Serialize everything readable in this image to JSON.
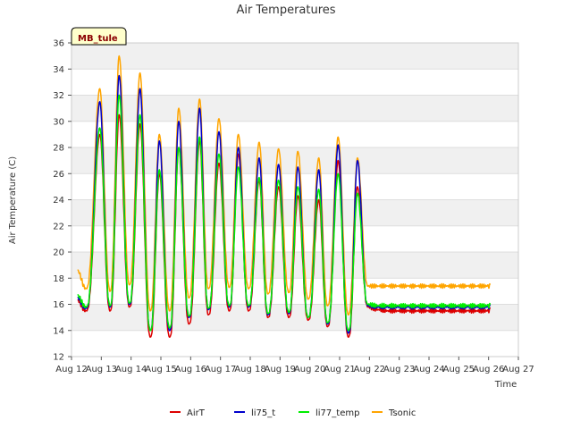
{
  "badge": "MB_tule",
  "colors": {
    "AirT": "#dd0000",
    "li75_t": "#0000cc",
    "li77_temp": "#00ee00",
    "Tsonic": "#ffa500",
    "band": "#f0f0f0",
    "grid": "#dddddd",
    "badge_fill": "#ffffcc"
  },
  "chart_data": {
    "type": "line",
    "title": "Air Temperatures",
    "xlabel": "Time",
    "ylabel": "Air Temperature (C)",
    "xlim": [
      12,
      27
    ],
    "ylim": [
      12,
      36
    ],
    "x_ticks": [
      12,
      13,
      14,
      15,
      16,
      17,
      18,
      19,
      20,
      21,
      22,
      23,
      24,
      25,
      26,
      27
    ],
    "x_tick_labels": [
      "Aug 12",
      "Aug 13",
      "Aug 14",
      "Aug 15",
      "Aug 16",
      "Aug 17",
      "Aug 18",
      "Aug 19",
      "Aug 20",
      "Aug 21",
      "Aug 22",
      "Aug 23",
      "Aug 24",
      "Aug 25",
      "Aug 26",
      "Aug 27"
    ],
    "y_ticks": [
      12,
      14,
      16,
      18,
      20,
      22,
      24,
      26,
      28,
      30,
      32,
      34,
      36
    ],
    "grid": true,
    "legend": "bottom",
    "daily_x": [
      12.2,
      12.5,
      12.95,
      13.3,
      13.6,
      13.95,
      14.3,
      14.65,
      14.95,
      15.3,
      15.6,
      15.95,
      16.3,
      16.6,
      16.95,
      17.3,
      17.6,
      17.95,
      18.3,
      18.6,
      18.95,
      19.3,
      19.6,
      19.95,
      20.3,
      20.6,
      20.95,
      21.3,
      21.6,
      21.95,
      22.3,
      22.6,
      22.95,
      23.3,
      23.6,
      23.95,
      24.3,
      24.6,
      24.95,
      25.3,
      25.6,
      25.95,
      26.1
    ],
    "series": [
      {
        "name": "AirT",
        "values": [
          16.3,
          15.5,
          29.0,
          15.5,
          30.5,
          15.8,
          29.8,
          13.5,
          26.0,
          13.5,
          28.0,
          14.5,
          28.5,
          15.2,
          26.8,
          15.5,
          27.5,
          15.5,
          25.5,
          15.0,
          25.0,
          15.0,
          24.3,
          14.8,
          24.0,
          14.3,
          27.0,
          13.5,
          25.0,
          15.8,
          15.6,
          15.5,
          15.5,
          15.5,
          15.5,
          15.5,
          15.5,
          15.5,
          15.5,
          15.5,
          15.5,
          15.5,
          15.6
        ]
      },
      {
        "name": "li75_t",
        "values": [
          16.5,
          15.7,
          31.5,
          15.8,
          33.5,
          16.0,
          32.5,
          14.0,
          28.5,
          14.0,
          30.0,
          15.0,
          31.0,
          15.6,
          29.2,
          15.8,
          28.0,
          15.8,
          27.2,
          15.2,
          26.7,
          15.3,
          26.5,
          15.0,
          26.3,
          14.5,
          28.2,
          13.8,
          27.0,
          15.9,
          15.8,
          15.8,
          15.8,
          15.8,
          15.8,
          15.8,
          15.8,
          15.8,
          15.8,
          15.8,
          15.8,
          15.8,
          15.8
        ]
      },
      {
        "name": "li77_temp",
        "values": [
          16.7,
          15.8,
          29.5,
          15.9,
          32.0,
          16.1,
          30.5,
          14.0,
          26.3,
          14.2,
          28.0,
          15.1,
          28.8,
          15.7,
          27.5,
          15.9,
          26.5,
          15.9,
          25.7,
          15.3,
          25.5,
          15.4,
          25.0,
          15.0,
          24.8,
          14.6,
          26.0,
          14.0,
          24.5,
          16.0,
          15.9,
          15.9,
          15.9,
          15.9,
          15.9,
          15.9,
          15.9,
          15.9,
          15.9,
          15.9,
          15.9,
          15.9,
          15.9
        ]
      },
      {
        "name": "Tsonic",
        "values": [
          18.6,
          17.2,
          32.5,
          17.0,
          35.0,
          17.5,
          33.7,
          15.5,
          29.0,
          15.5,
          31.0,
          16.5,
          31.7,
          17.2,
          30.2,
          17.3,
          29.0,
          17.2,
          28.4,
          16.8,
          27.9,
          16.9,
          27.7,
          16.4,
          27.2,
          15.9,
          28.8,
          15.2,
          27.2,
          17.4,
          17.4,
          17.4,
          17.4,
          17.4,
          17.4,
          17.4,
          17.4,
          17.4,
          17.4,
          17.4,
          17.4,
          17.4,
          17.4
        ]
      }
    ]
  }
}
